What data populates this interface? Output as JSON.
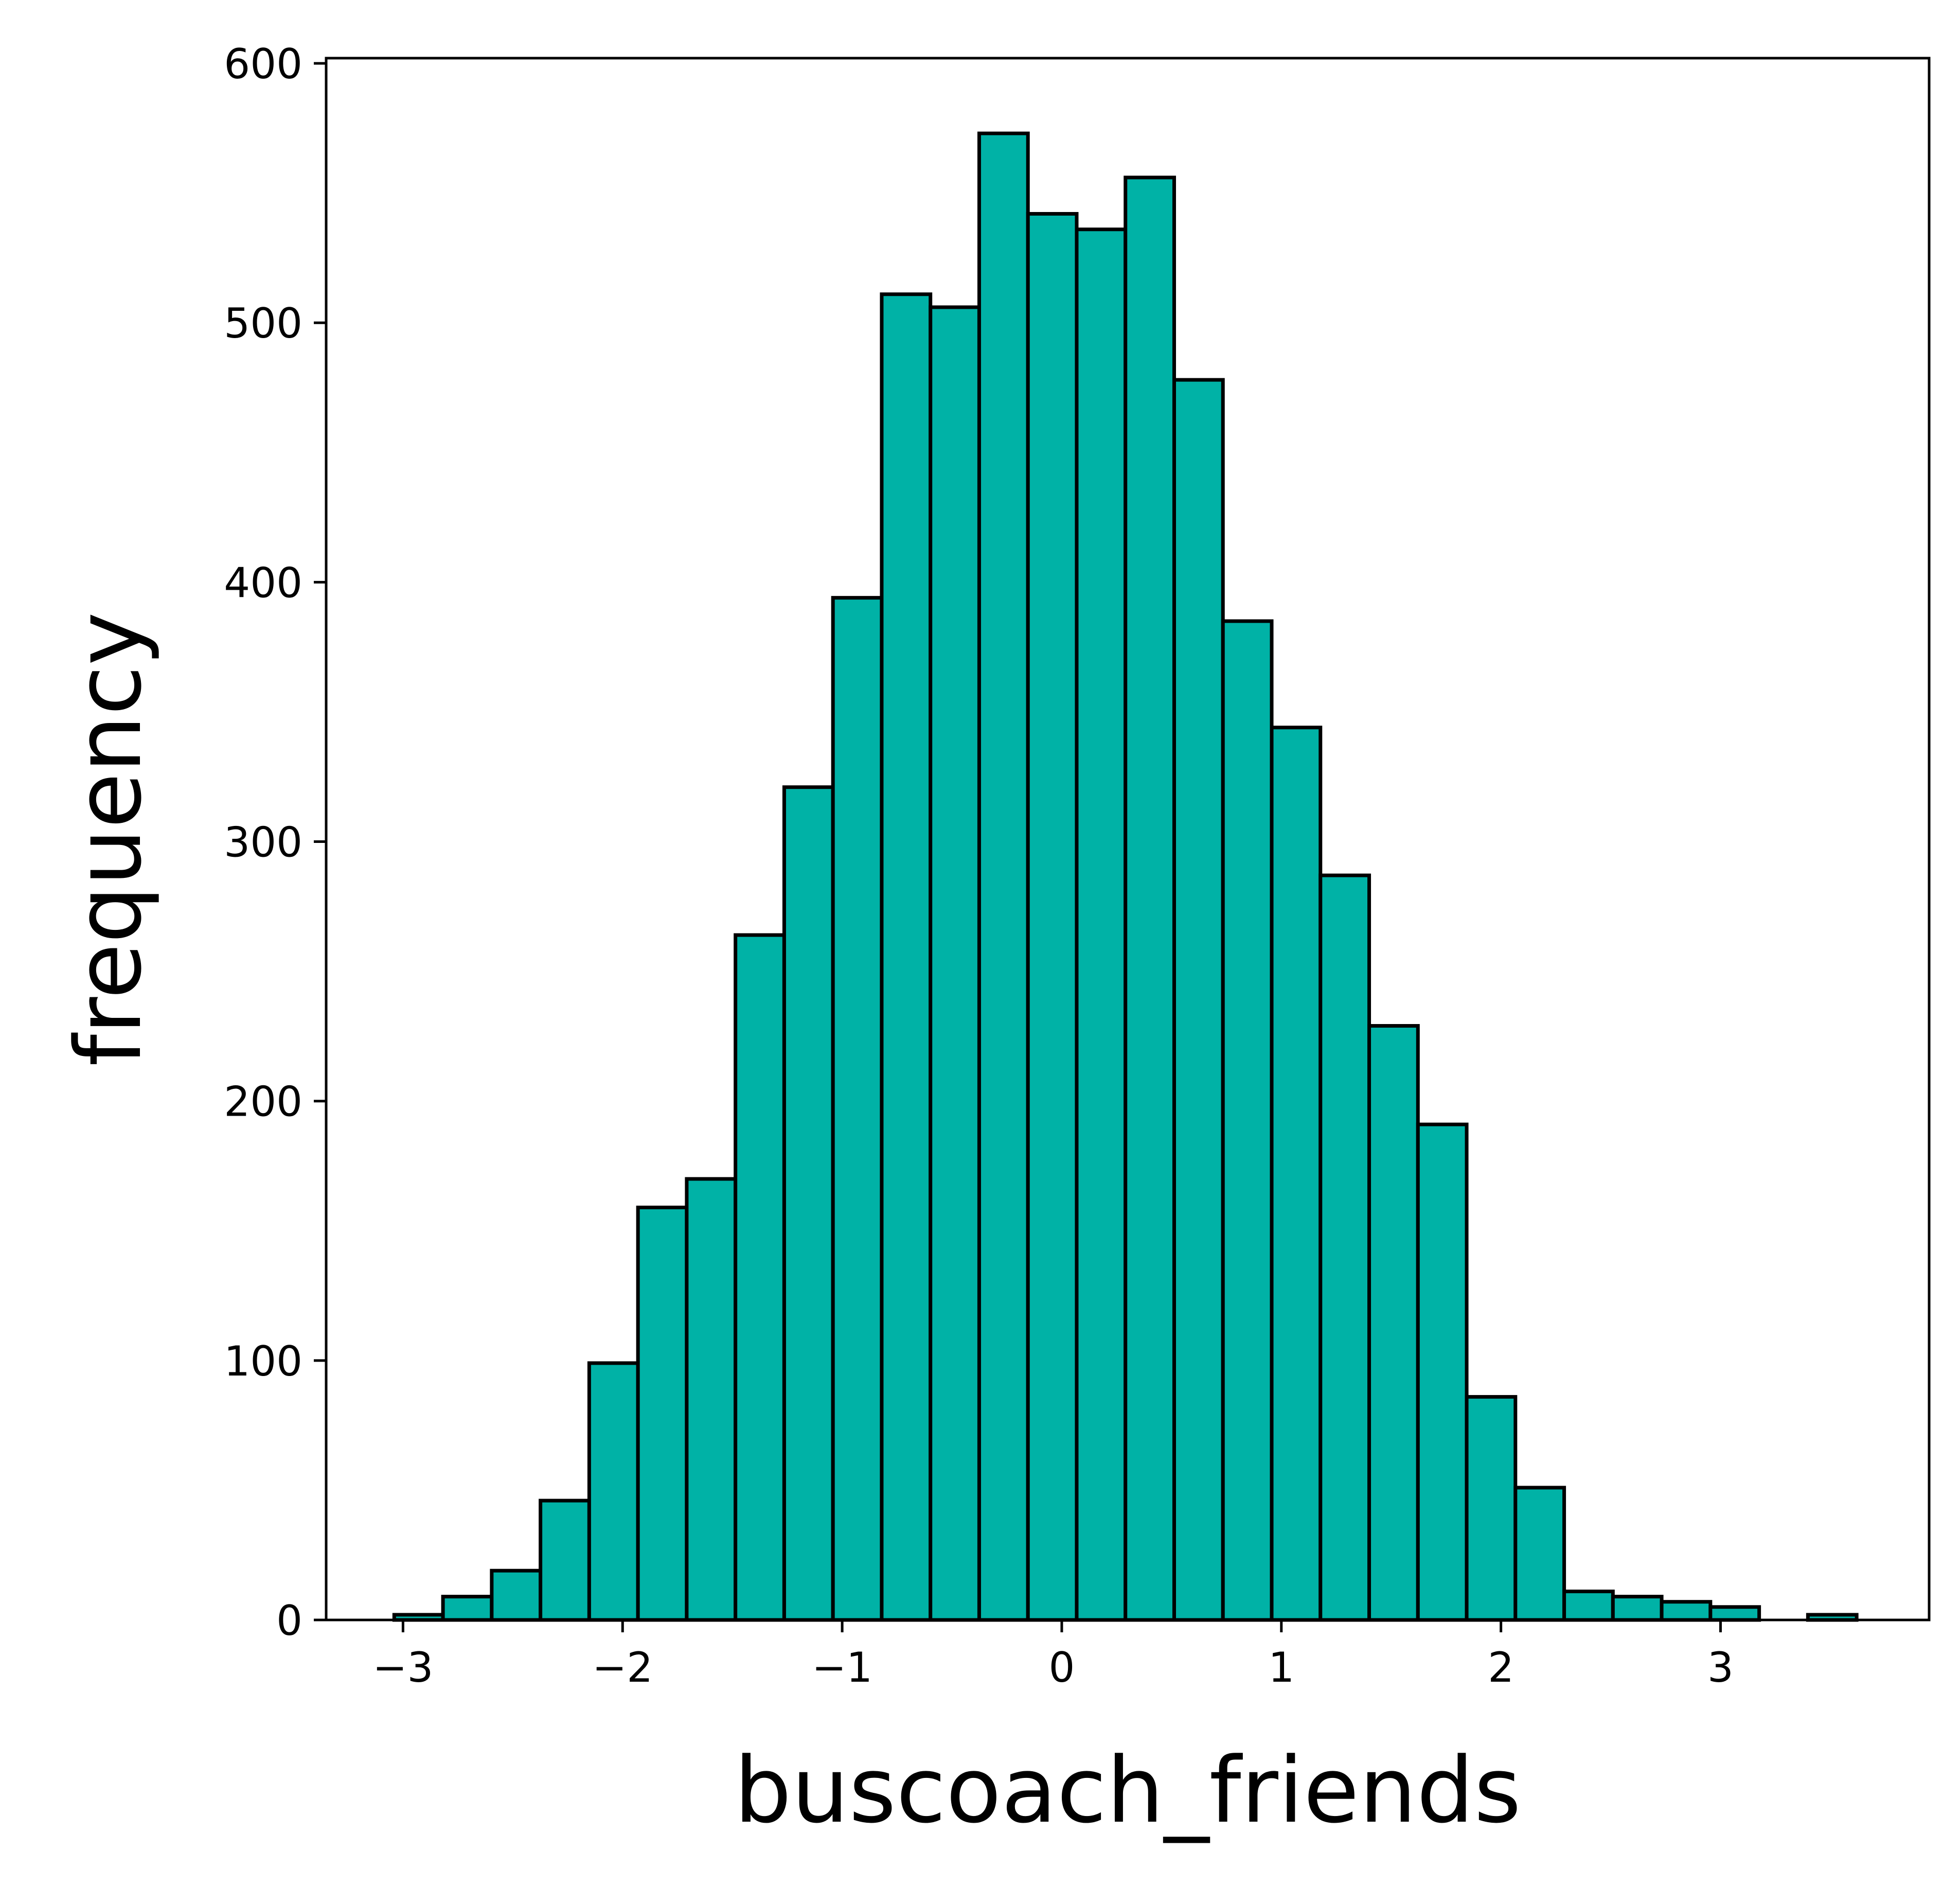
{
  "chart_data": {
    "type": "bar",
    "subtype": "histogram",
    "title": "",
    "xlabel": "buscoach_friends",
    "ylabel": "frequency",
    "xlim": [
      -3.35,
      3.95
    ],
    "ylim": [
      0,
      602
    ],
    "grid": false,
    "legend": "none",
    "bar_color": "#00b2a6",
    "edge_color": "#000000",
    "bin_start": -3.04,
    "bin_width": 0.222,
    "values": [
      2,
      9,
      19,
      46,
      99,
      159,
      170,
      264,
      321,
      394,
      511,
      506,
      573,
      542,
      536,
      556,
      478,
      385,
      344,
      287,
      229,
      191,
      86,
      51,
      11,
      9,
      7,
      5,
      0,
      2
    ],
    "x_ticks": [
      {
        "value": -3,
        "label": "−3"
      },
      {
        "value": -2,
        "label": "−2"
      },
      {
        "value": -1,
        "label": "−1"
      },
      {
        "value": 0,
        "label": "0"
      },
      {
        "value": 1,
        "label": "1"
      },
      {
        "value": 2,
        "label": "2"
      },
      {
        "value": 3,
        "label": "3"
      }
    ],
    "y_ticks": [
      {
        "value": 0,
        "label": "0"
      },
      {
        "value": 100,
        "label": "100"
      },
      {
        "value": 200,
        "label": "200"
      },
      {
        "value": 300,
        "label": "300"
      },
      {
        "value": 400,
        "label": "400"
      },
      {
        "value": 500,
        "label": "500"
      },
      {
        "value": 600,
        "label": "600"
      }
    ]
  }
}
